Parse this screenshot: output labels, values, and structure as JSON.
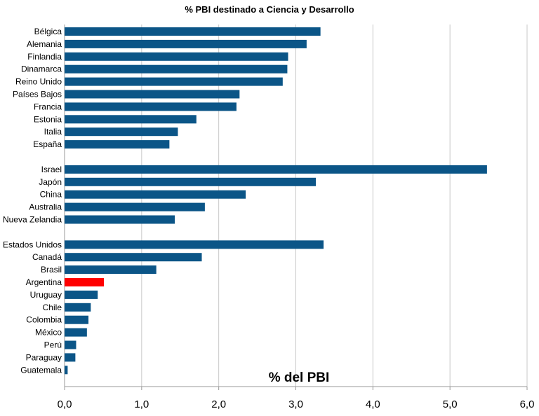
{
  "chart_data": {
    "type": "bar",
    "orientation": "horizontal",
    "title": "% PBI destinado a Ciencia y Desarrollo",
    "xlabel": "% del PBI",
    "ylabel": "",
    "xlim": [
      0,
      6
    ],
    "ticks": [
      "0,0",
      "1,0",
      "2,0",
      "3,0",
      "4,0",
      "5,0",
      "6,0"
    ],
    "grid": true,
    "legend": "none",
    "colors": {
      "default": "#0b5587",
      "highlight": "#ff0000"
    },
    "groups": [
      {
        "categories": [
          "Bélgica",
          "Alemania",
          "Finlandia",
          "Dinamarca",
          "Reino Unido",
          "Países Bajos",
          "Francia",
          "Estonia",
          "Italia",
          "España"
        ],
        "values": [
          3.32,
          3.14,
          2.9,
          2.89,
          2.83,
          2.27,
          2.23,
          1.71,
          1.47,
          1.36
        ]
      },
      {
        "categories": [
          "Israel",
          "Japón",
          "China",
          "Australia",
          "Nueva Zelandia"
        ],
        "values": [
          5.48,
          3.26,
          2.35,
          1.82,
          1.43
        ]
      },
      {
        "categories": [
          "Estados Unidos",
          "Canadá",
          "Brasil",
          "Argentina",
          "Uruguay",
          "Chile",
          "Colombia",
          "México",
          "Perú",
          "Paraguay",
          "Guatemala"
        ],
        "values": [
          3.36,
          1.78,
          1.19,
          0.51,
          0.43,
          0.34,
          0.31,
          0.29,
          0.15,
          0.14,
          0.04
        ]
      }
    ],
    "highlight": "Argentina"
  }
}
